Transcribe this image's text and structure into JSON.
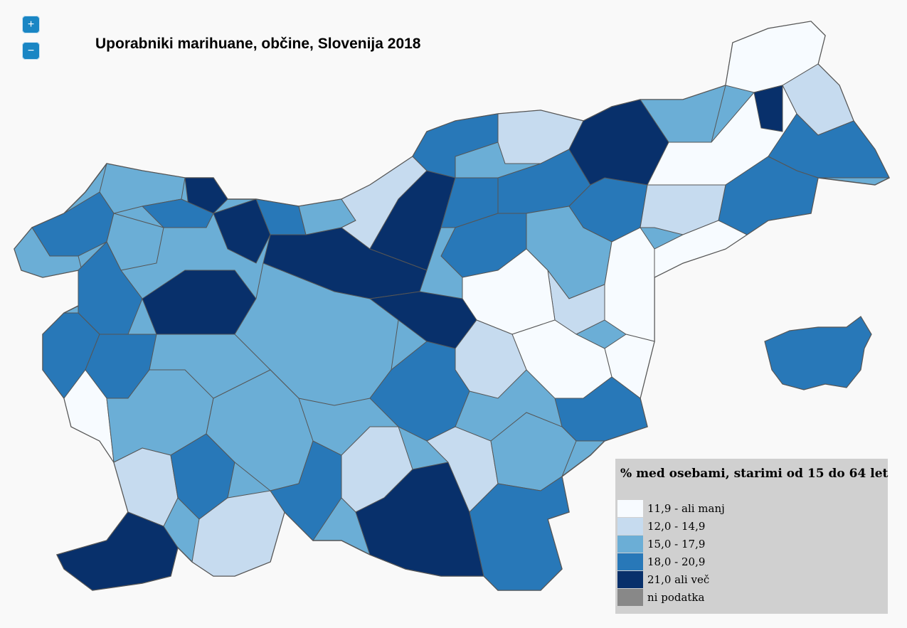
{
  "controls": {
    "zoom_in": "+",
    "zoom_out": "−"
  },
  "title": "Uporabniki marihuane, občine, Slovenija 2018",
  "legend": {
    "title": "% med osebami, starimi od 15 do 64 let",
    "classes": [
      {
        "label": "11,9 - ali manj",
        "color": "#f7fbff"
      },
      {
        "label": "12,0 - 14,9",
        "color": "#c6dbef"
      },
      {
        "label": "15,0 - 17,9",
        "color": "#6baed6"
      },
      {
        "label": "18,0 - 20,9",
        "color": "#2878b8"
      },
      {
        "label": "21,0 ali več",
        "color": "#08306b"
      },
      {
        "label": "ni podatka",
        "color": "#888888"
      }
    ]
  },
  "map_data": {
    "regions": [
      {
        "class": 2
      },
      {
        "class": 3
      },
      {
        "class": 2
      },
      {
        "class": 4
      },
      {
        "class": 3
      },
      {
        "class": 2
      },
      {
        "class": 4
      },
      {
        "class": 3
      },
      {
        "class": 4
      },
      {
        "class": 3
      },
      {
        "class": 4
      },
      {
        "class": 2
      },
      {
        "class": 1
      },
      {
        "class": 4
      },
      {
        "class": 3
      },
      {
        "class": 3
      },
      {
        "class": 1
      },
      {
        "class": 3
      },
      {
        "class": 4
      },
      {
        "class": 2
      },
      {
        "class": 3
      },
      {
        "class": 0
      },
      {
        "class": 1
      },
      {
        "class": 0
      },
      {
        "class": 3
      },
      {
        "class": 4
      },
      {
        "class": 3
      },
      {
        "class": 1
      },
      {
        "class": 0
      },
      {
        "class": 2
      },
      {
        "class": 3
      },
      {
        "class": 0
      },
      {
        "class": 1
      },
      {
        "class": 0
      },
      {
        "class": 0
      },
      {
        "class": 4
      },
      {
        "class": 2
      },
      {
        "class": 0
      },
      {
        "class": 1
      },
      {
        "class": 3
      },
      {
        "class": 3
      },
      {
        "class": 0
      },
      {
        "class": 2
      },
      {
        "class": 2
      },
      {
        "class": 3
      },
      {
        "class": 3
      }
    ]
  }
}
